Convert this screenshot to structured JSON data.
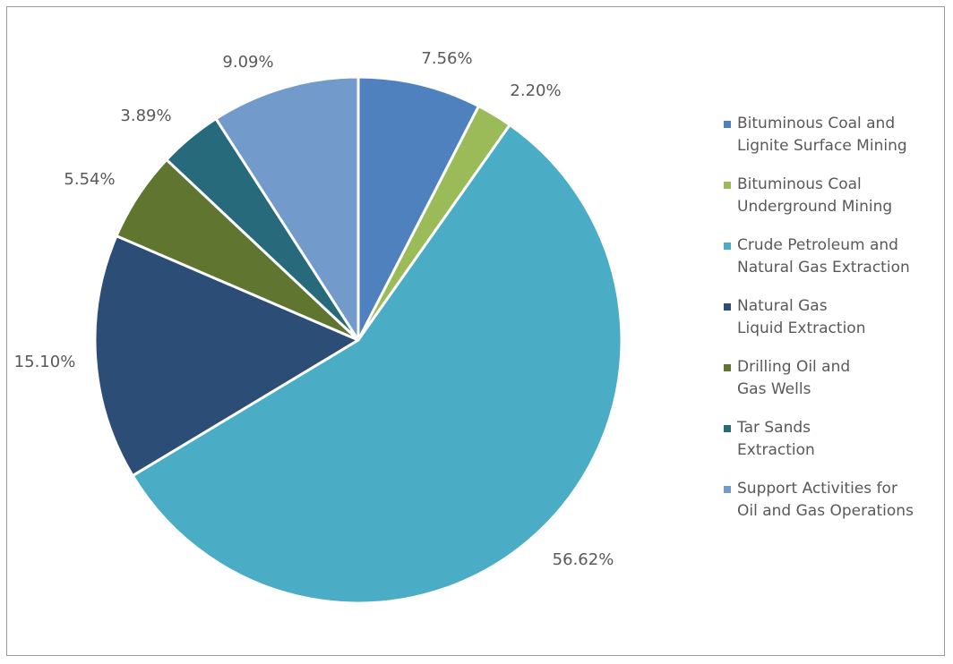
{
  "chart_data": {
    "type": "pie",
    "title": "",
    "start_angle_deg": 0,
    "direction": "clockwise",
    "legend_position": "right",
    "slices": [
      {
        "name": "Bituminous Coal and\nLignite Surface Mining",
        "value": 7.56,
        "label": "7.56%",
        "color": "#4e81bd"
      },
      {
        "name": "Bituminous Coal\nUnderground Mining",
        "value": 2.2,
        "label": "2.20%",
        "color": "#9bbb59"
      },
      {
        "name": "Crude Petroleum and\nNatural Gas Extraction",
        "value": 56.62,
        "label": "56.62%",
        "color": "#4bacc6"
      },
      {
        "name": "Natural Gas\nLiquid Extraction",
        "value": 15.1,
        "label": "15.10%",
        "color": "#2c4d75"
      },
      {
        "name": "Drilling Oil and\nGas Wells",
        "value": 5.54,
        "label": "5.54%",
        "color": "#5f7530"
      },
      {
        "name": "Tar Sands\nExtraction",
        "value": 3.89,
        "label": "3.89%",
        "color": "#276a7c"
      },
      {
        "name": "Support Activities for\nOil and Gas Operations",
        "value": 9.09,
        "label": "9.09%",
        "color": "#729aca"
      }
    ]
  }
}
